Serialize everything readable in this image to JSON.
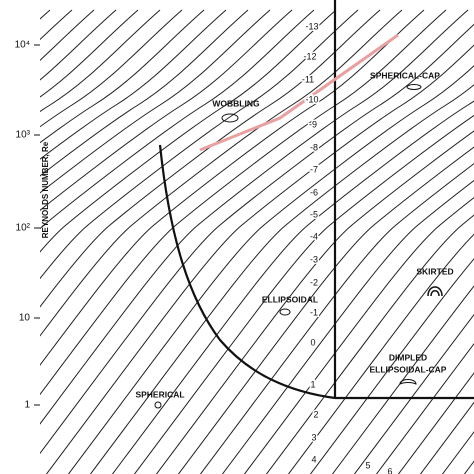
{
  "y_axis": {
    "label": "REYNOLDS NUMBER, Re",
    "ticks": [
      "10⁴",
      "10³",
      "10²",
      "10",
      "1"
    ]
  },
  "regimes": [
    "WOBBLING",
    "SPHERICAL-CAP",
    "ELLIPSOIDAL",
    "SKIRTED",
    "DIMPLED",
    "ELLIPSOIDAL-CAP",
    "SPHERICAL"
  ],
  "contour_labels": [
    "-13",
    "-12",
    "-11",
    "-10",
    "-9",
    "-8",
    "-7",
    "-6",
    "-5",
    "-4",
    "-3",
    "-2",
    "-1",
    "0",
    "1",
    "2",
    "3",
    "4",
    "5",
    "6"
  ]
}
